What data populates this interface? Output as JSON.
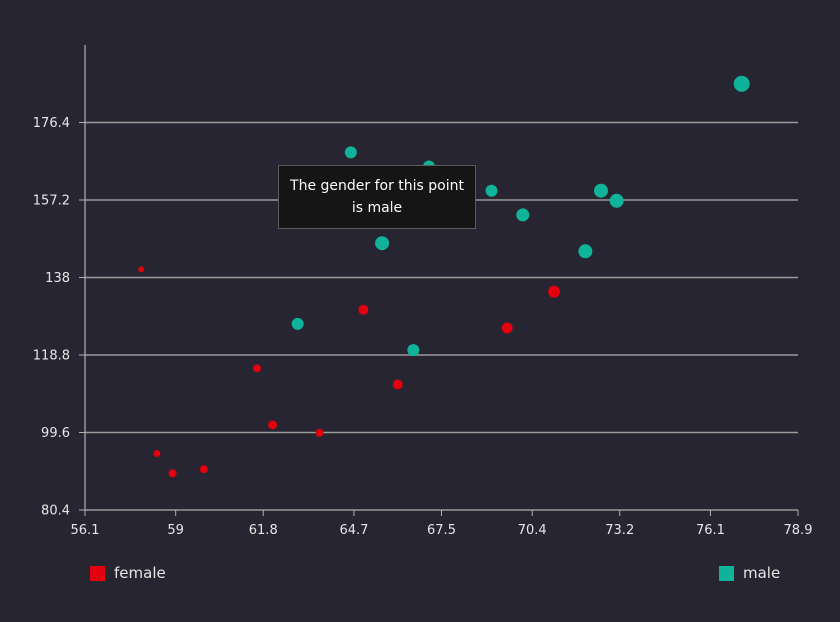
{
  "chart_data": {
    "type": "scatter",
    "title": "",
    "xlabel": "",
    "ylabel": "",
    "xlim": [
      56.1,
      78.9
    ],
    "ylim": [
      80.4,
      195.6
    ],
    "x_ticks": [
      "56.1",
      "59",
      "61.8",
      "64.7",
      "67.5",
      "70.4",
      "73.2",
      "76.1",
      "78.9"
    ],
    "y_ticks": [
      "80.4",
      "99.6",
      "118.8",
      "138",
      "157.2",
      "176.4"
    ],
    "grid": "horizontal",
    "legend_placement": "bottom",
    "series": [
      {
        "name": "female",
        "color": "#e3000f",
        "points": [
          {
            "x": 57.9,
            "y": 140.0,
            "size": 1
          },
          {
            "x": 58.4,
            "y": 94.4,
            "size": 2
          },
          {
            "x": 58.9,
            "y": 89.5,
            "size": 3
          },
          {
            "x": 59.9,
            "y": 90.5,
            "size": 3
          },
          {
            "x": 61.6,
            "y": 115.5,
            "size": 3
          },
          {
            "x": 62.1,
            "y": 101.5,
            "size": 4
          },
          {
            "x": 63.6,
            "y": 99.5,
            "size": 3
          },
          {
            "x": 65.0,
            "y": 130.0,
            "size": 5
          },
          {
            "x": 66.1,
            "y": 111.5,
            "size": 5
          },
          {
            "x": 69.6,
            "y": 125.5,
            "size": 6
          },
          {
            "x": 71.1,
            "y": 134.5,
            "size": 7
          }
        ]
      },
      {
        "name": "male",
        "color": "#0fb39a",
        "points": [
          {
            "x": 62.9,
            "y": 126.5,
            "size": 7
          },
          {
            "x": 64.6,
            "y": 169.0,
            "size": 7
          },
          {
            "x": 65.6,
            "y": 146.5,
            "size": 9
          },
          {
            "x": 66.6,
            "y": 120.0,
            "size": 7
          },
          {
            "x": 67.1,
            "y": 165.5,
            "size": 7
          },
          {
            "x": 69.1,
            "y": 159.5,
            "size": 7
          },
          {
            "x": 70.1,
            "y": 153.5,
            "size": 8
          },
          {
            "x": 72.1,
            "y": 144.5,
            "size": 9
          },
          {
            "x": 72.6,
            "y": 159.5,
            "size": 9
          },
          {
            "x": 73.1,
            "y": 157.0,
            "size": 9
          },
          {
            "x": 77.1,
            "y": 186.0,
            "size": 11
          }
        ]
      }
    ]
  },
  "tooltip": {
    "text": "The gender for this point is male"
  },
  "legend": {
    "female_label": "female",
    "male_label": "male",
    "female_color": "#e3000f",
    "male_color": "#0fb39a"
  }
}
